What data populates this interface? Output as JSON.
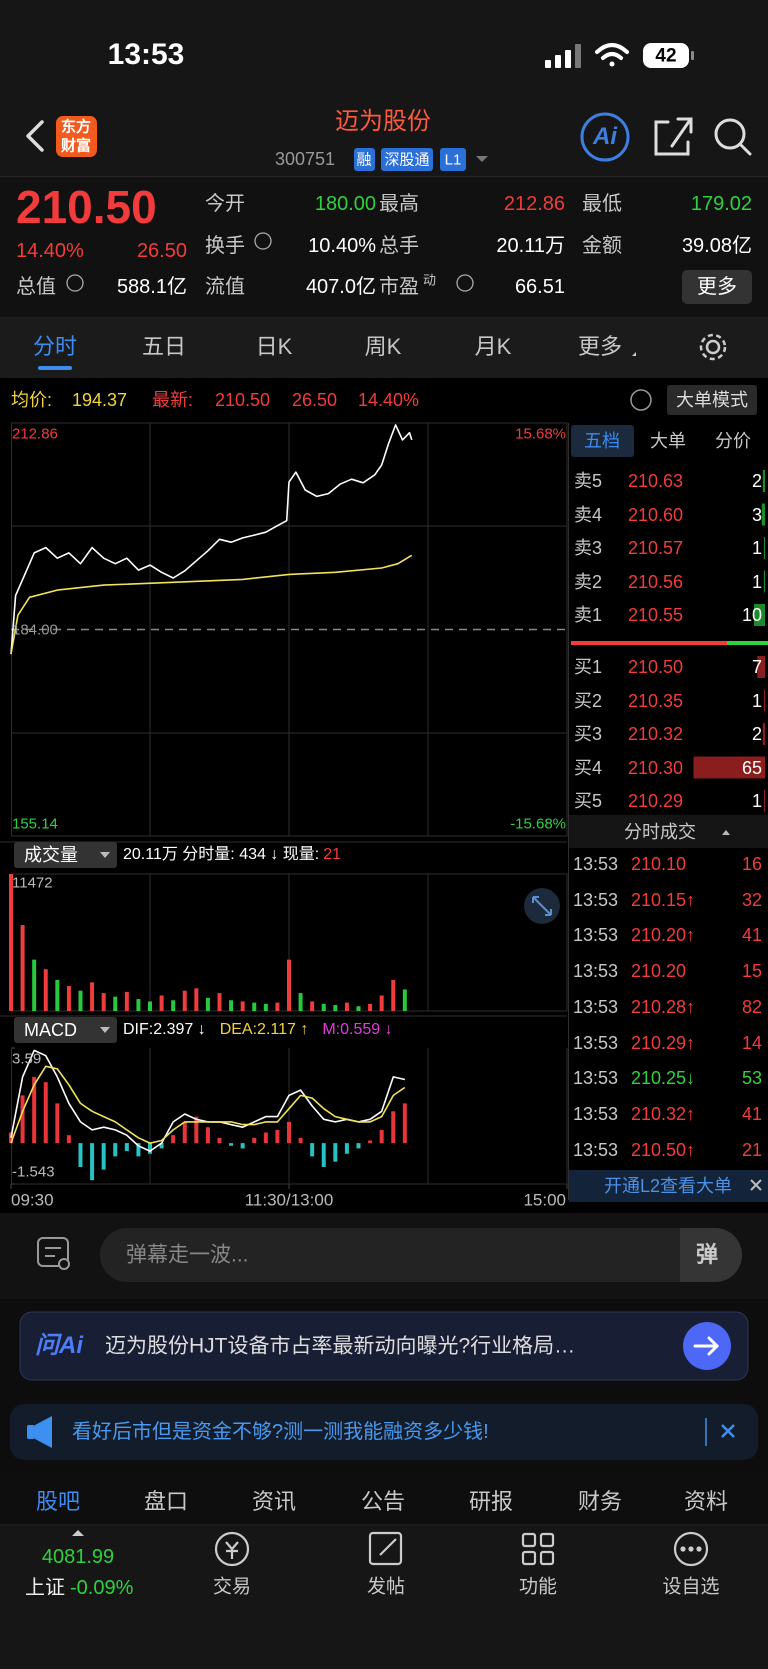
{
  "status": {
    "time": "13:53",
    "battery": "42"
  },
  "header": {
    "logo": [
      "东方",
      "财富"
    ],
    "title": "迈为股份",
    "code": "300751",
    "tags": [
      "融",
      "深股通",
      "L1"
    ],
    "ai": "Ai"
  },
  "quote": {
    "price": "210.50",
    "change_pct": "14.40%",
    "change": "26.50",
    "fields": [
      {
        "label": "今开",
        "value": "180.00",
        "color": "#2fd13f"
      },
      {
        "label": "最高",
        "value": "212.86",
        "color": "#f23b3b"
      },
      {
        "label": "最低",
        "value": "179.02",
        "color": "#2fd13f"
      },
      {
        "label": "换手",
        "value": "10.40%"
      },
      {
        "label": "总手",
        "value": "20.11万"
      },
      {
        "label": "金额",
        "value": "39.08亿"
      },
      {
        "label": "总值",
        "value": "588.1亿"
      },
      {
        "label": "流值",
        "value": "407.0亿"
      },
      {
        "label": "市盈",
        "sup": "动",
        "value": "66.51"
      }
    ],
    "more": "更多"
  },
  "tabs": [
    "分时",
    "五日",
    "日K",
    "周K",
    "月K",
    "更多"
  ],
  "info": {
    "avg_label": "均价:",
    "avg": "194.37",
    "last_label": "最新:",
    "last": "210.50",
    "change": "26.50",
    "change_pct": "14.40%",
    "mode": "大单模式"
  },
  "price_chart": {
    "type": "line",
    "xlim": [
      0,
      240
    ],
    "xticks": [
      {
        "value": 0,
        "label": "09:30"
      },
      {
        "value": 120,
        "label": "11:30/13:00"
      },
      {
        "value": 240,
        "label": "15:00"
      }
    ],
    "ylim": [
      155.14,
      212.86
    ],
    "yticks": [
      212.86,
      {
        "value": 184,
        "label": "184.00"
      },
      155.14
    ],
    "y2lim": [
      -15.68,
      15.68
    ],
    "y2ticks": [
      {
        "value": 15.68,
        "label": "15.68%"
      },
      {
        "value": -15.68,
        "label": "-15.68%"
      }
    ],
    "x": [
      0,
      2,
      5,
      10,
      15,
      20,
      25,
      30,
      35,
      40,
      45,
      50,
      55,
      60,
      65,
      70,
      75,
      80,
      85,
      90,
      95,
      100,
      105,
      110,
      115,
      119,
      120,
      123,
      127,
      132,
      137,
      142,
      147,
      152,
      157,
      160,
      163,
      166,
      169,
      172,
      173
    ],
    "price": [
      180.56,
      188.75,
      190.98,
      194.7,
      195.45,
      193.96,
      194.7,
      193.2,
      195.45,
      193.96,
      193.2,
      193.96,
      192.3,
      193.0,
      192.0,
      191.2,
      192.2,
      193.6,
      195.0,
      196.6,
      196.2,
      196.8,
      197.2,
      197.6,
      198.5,
      199.2,
      204.6,
      206.0,
      203.5,
      202.6,
      203.0,
      204.3,
      205.0,
      204.5,
      205.6,
      207.0,
      210.0,
      212.6,
      210.5,
      211.5,
      210.5
    ],
    "price_color": "#ffffff",
    "avg_x": [
      0,
      3,
      8,
      20,
      40,
      70,
      100,
      120,
      140,
      160,
      167,
      173
    ],
    "avg": [
      180.56,
      186.0,
      188.5,
      189.5,
      190.2,
      190.6,
      191.0,
      191.7,
      192.0,
      192.6,
      193.2,
      194.37
    ],
    "avg_color": "#f2e35a"
  },
  "volume_chart": {
    "type": "bar",
    "selector": "成交量",
    "summary": "20.11万 分时量: 434 ↓ 现量:",
    "current": "21",
    "xlim": [
      0,
      240
    ],
    "ylim": [
      0,
      11472
    ],
    "yticks": [
      11472
    ],
    "x": [
      0,
      5,
      10,
      15,
      20,
      25,
      30,
      35,
      40,
      45,
      50,
      55,
      60,
      65,
      70,
      75,
      80,
      85,
      90,
      95,
      100,
      105,
      110,
      115,
      120,
      125,
      130,
      135,
      140,
      145,
      150,
      155,
      160,
      165,
      170
    ],
    "values": [
      11472,
      7200,
      4300,
      3500,
      2600,
      2100,
      1700,
      2400,
      1500,
      1200,
      1600,
      1000,
      800,
      1300,
      900,
      1700,
      1900,
      1100,
      1500,
      900,
      800,
      700,
      600,
      700,
      4300,
      1500,
      800,
      600,
      500,
      700,
      400,
      600,
      1300,
      2600,
      1800
    ],
    "colors": [
      "#f03c3c",
      "#f03c3c",
      "#27c93f",
      "#f03c3c",
      "#27c93f",
      "#f03c3c",
      "#27c93f",
      "#f03c3c",
      "#f03c3c",
      "#27c93f",
      "#f03c3c",
      "#27c93f",
      "#27c93f",
      "#f03c3c",
      "#27c93f",
      "#f03c3c",
      "#f03c3c",
      "#27c93f",
      "#f03c3c",
      "#27c93f",
      "#f03c3c",
      "#27c93f",
      "#27c93f",
      "#f03c3c",
      "#f03c3c",
      "#27c93f",
      "#f03c3c",
      "#27c93f",
      "#27c93f",
      "#f03c3c",
      "#27c93f",
      "#f03c3c",
      "#f03c3c",
      "#f03c3c",
      "#27c93f"
    ]
  },
  "macd_chart": {
    "type": "bar",
    "selector": "MACD",
    "dif": "DIF:2.397 ↓",
    "dea": "DEA:2.117 ↑",
    "m": "M:0.559 ↓",
    "xlim": [
      0,
      240
    ],
    "ylim": [
      -1.543,
      3.59
    ],
    "yticks": [
      3.59,
      -1.543
    ],
    "x": [
      0,
      5,
      10,
      15,
      20,
      25,
      30,
      35,
      40,
      45,
      50,
      55,
      60,
      65,
      70,
      75,
      80,
      85,
      90,
      95,
      100,
      105,
      110,
      115,
      120,
      125,
      130,
      135,
      140,
      145,
      150,
      155,
      160,
      165,
      170
    ],
    "hist": [
      0.4,
      1.8,
      2.5,
      2.3,
      1.5,
      0.3,
      -0.9,
      -1.4,
      -1.0,
      -0.5,
      -0.3,
      -0.5,
      -0.4,
      -0.2,
      0.3,
      0.8,
      1.0,
      0.6,
      0.2,
      -0.1,
      -0.2,
      0.2,
      0.4,
      0.5,
      0.8,
      0.2,
      -0.5,
      -0.9,
      -0.7,
      -0.4,
      -0.2,
      0.1,
      0.5,
      1.2,
      1.5
    ],
    "dif_values": [
      0.2,
      2.5,
      3.5,
      3.3,
      2.5,
      1.5,
      0.8,
      0.5,
      0.6,
      0.5,
      0.3,
      -0.1,
      -0.3,
      0,
      0.8,
      1.1,
      0.9,
      0.8,
      0.8,
      0.7,
      0.6,
      0.8,
      1.0,
      1.0,
      1.8,
      2.0,
      1.4,
      0.9,
      0.8,
      0.9,
      0.8,
      0.9,
      1.2,
      2.5,
      2.4
    ],
    "dea_values": [
      0,
      1.2,
      2.2,
      2.9,
      2.8,
      2.2,
      1.5,
      1.2,
      1.0,
      0.8,
      0.5,
      0.2,
      0,
      0.1,
      0.5,
      0.8,
      0.8,
      0.8,
      0.8,
      0.8,
      0.7,
      0.7,
      0.8,
      0.8,
      1.3,
      1.8,
      1.7,
      1.3,
      1.0,
      0.9,
      0.8,
      0.8,
      1.0,
      1.8,
      2.1
    ],
    "up_color": "#e8353a",
    "down_color": "#27c3c3",
    "dif_color": "#ffffff",
    "dea_color": "#f2e35a"
  },
  "order_book": {
    "tabs": [
      "五档",
      "大单",
      "分价"
    ],
    "asks": [
      {
        "label": "卖5",
        "price": "210.63",
        "qty": 2
      },
      {
        "label": "卖4",
        "price": "210.60",
        "qty": 3
      },
      {
        "label": "卖3",
        "price": "210.57",
        "qty": 1
      },
      {
        "label": "卖2",
        "price": "210.56",
        "qty": 1
      },
      {
        "label": "卖1",
        "price": "210.55",
        "qty": 10
      }
    ],
    "bids": [
      {
        "label": "买1",
        "price": "210.50",
        "qty": 7
      },
      {
        "label": "买2",
        "price": "210.35",
        "qty": 1
      },
      {
        "label": "买3",
        "price": "210.32",
        "qty": 2
      },
      {
        "label": "买4",
        "price": "210.30",
        "qty": 65
      },
      {
        "label": "买5",
        "price": "210.29",
        "qty": 1
      }
    ]
  },
  "trades": {
    "title": "分时成交",
    "rows": [
      {
        "time": "13:53",
        "price": "210.10",
        "qty": "16"
      },
      {
        "time": "13:53",
        "price": "210.15↑",
        "qty": "32"
      },
      {
        "time": "13:53",
        "price": "210.20↑",
        "qty": "41"
      },
      {
        "time": "13:53",
        "price": "210.20",
        "qty": "15"
      },
      {
        "time": "13:53",
        "price": "210.28↑",
        "qty": "82"
      },
      {
        "time": "13:53",
        "price": "210.29↑",
        "qty": "14"
      },
      {
        "time": "13:53",
        "price": "210.25↓",
        "qty": "53"
      },
      {
        "time": "13:53",
        "price": "210.32↑",
        "qty": "41"
      },
      {
        "time": "13:53",
        "price": "210.50↑",
        "qty": "21"
      }
    ],
    "l2": "开通L2查看大单"
  },
  "comment": {
    "placeholder": "弹幕走一波...",
    "button": "弹"
  },
  "ai_banner": {
    "logo": "问Ai",
    "text": "迈为股份HJT设备市占率最新动向曝光?行业格局…"
  },
  "promo": {
    "text": "看好后市但是资金不够?测一测我能融资多少钱!"
  },
  "bottom_tabs": [
    "股吧",
    "盘口",
    "资讯",
    "公告",
    "研报",
    "财务",
    "资料"
  ],
  "nav": {
    "index_value": "4081.99",
    "index_name": "上证",
    "index_change": "-0.09%",
    "items": [
      "交易",
      "发帖",
      "功能",
      "设自选"
    ]
  }
}
